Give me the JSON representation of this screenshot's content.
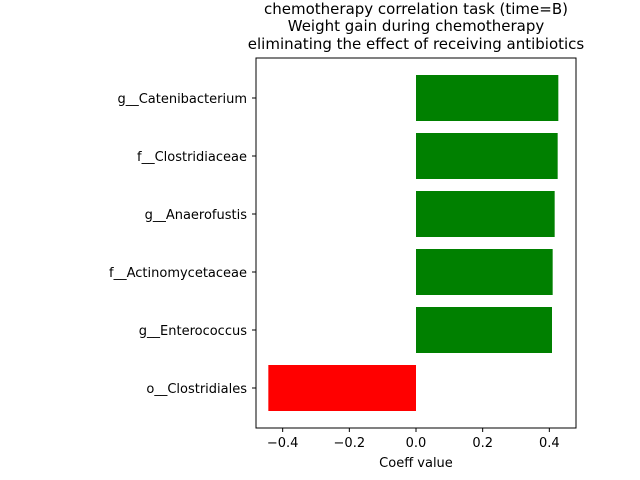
{
  "chart_data": {
    "type": "bar",
    "orientation": "horizontal",
    "title_lines": [
      "chemotherapy correlation task (time=B)",
      "Weight gain during chemotherapy",
      "eliminating the effect of receiving antibiotics"
    ],
    "xlabel": "Coeff value",
    "ylabel": "",
    "xlim": [
      -0.48,
      0.48
    ],
    "xticks": [
      -0.4,
      -0.2,
      0.0,
      0.2,
      0.4
    ],
    "xtick_labels": [
      "−0.4",
      "−0.2",
      "0.0",
      "0.2",
      "0.4"
    ],
    "categories": [
      "g__Catenibacterium",
      "f__Clostridiaceae",
      "g__Anaerofustis",
      "f__Actinomycetaceae",
      "g__Enterococcus",
      "o__Clostridiales"
    ],
    "values": [
      0.427,
      0.425,
      0.416,
      0.41,
      0.408,
      -0.443
    ],
    "bar_colors": [
      "#008000",
      "#008000",
      "#008000",
      "#008000",
      "#008000",
      "#ff0000"
    ],
    "grid": false,
    "legend": false
  }
}
